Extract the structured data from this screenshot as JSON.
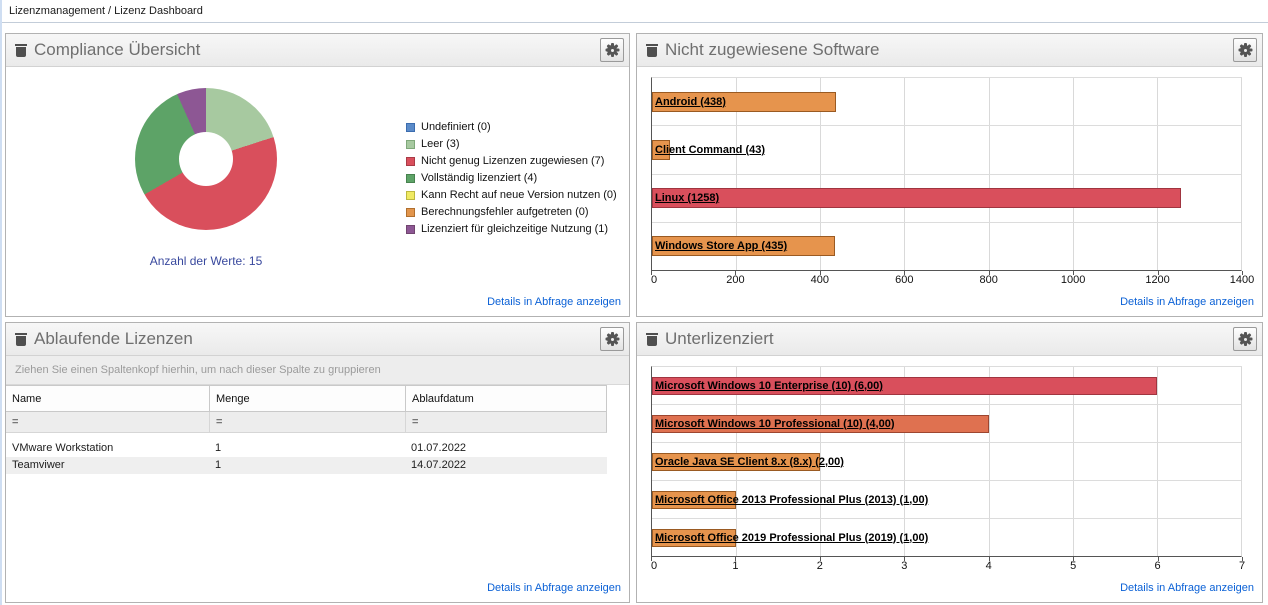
{
  "breadcrumb": {
    "text": "Lizenzmanagement / Lizenz Dashboard"
  },
  "colors": {
    "link": "#0b61d6",
    "caption_blue": "#39499e",
    "axis": "#555555",
    "gridline": "#d9d9d9",
    "accent_red": "#d94f5c",
    "accent_orange": "#e6944d"
  },
  "icons": {
    "panel_icon": "trash-icon",
    "settings_icon": "gear-icon"
  },
  "panels": [
    {
      "title": "Compliance Übersicht",
      "details_link": "Details in Abfrage anzeigen"
    },
    {
      "title": "Nicht zugewiesene Software",
      "details_link": "Details in Abfrage anzeigen"
    },
    {
      "title": "Ablaufende Lizenzen",
      "details_link": "Details in Abfrage anzeigen"
    },
    {
      "title": "Unterlizenziert",
      "details_link": "Details in Abfrage anzeigen"
    }
  ],
  "chart_data": [
    {
      "type": "pie",
      "title": "Compliance Übersicht",
      "labels": [
        "Undefiniert",
        "Leer",
        "Nicht genug Lizenzen zugewiesen",
        "Vollständig lizenziert",
        "Kann Recht auf neue Version nutzen",
        "Berechnungsfehler aufgetreten",
        "Lizenziert für gleichzeitige Nutzung"
      ],
      "values": [
        0,
        3,
        7,
        4,
        0,
        0,
        1
      ],
      "colors": [
        "#5b8bc9",
        "#a7c9a0",
        "#d94f5c",
        "#5da367",
        "#f0ea62",
        "#e2954c",
        "#8d5794"
      ],
      "border_colors": [
        "#3c6daf",
        "#7fa87a",
        "#a93b46",
        "#47824f",
        "#bdb83f",
        "#b06f2e",
        "#71456f"
      ],
      "total": 15,
      "caption": "Anzahl der Werte: 15",
      "hole_ratio": 0.38,
      "legend_position": "right"
    },
    {
      "type": "bar",
      "orientation": "horizontal",
      "title": "Nicht zugewiesene Software",
      "categories": [
        "Android (438)",
        "Client Command (43)",
        "Linux (1258)",
        "Windows Store App (435)"
      ],
      "values": [
        438,
        43,
        1258,
        435
      ],
      "colors": [
        "#e6944d",
        "#e6944d",
        "#d94f5c",
        "#e6944d"
      ],
      "border_colors": [
        "#9a5a22",
        "#9a5a22",
        "#a03540",
        "#9a5a22"
      ],
      "xlim": [
        0,
        1400
      ],
      "xticks": [
        0,
        200,
        400,
        600,
        800,
        1000,
        1200,
        1400
      ],
      "grid": true
    },
    {
      "type": "bar",
      "orientation": "horizontal",
      "title": "Unterlizenziert",
      "categories": [
        "Microsoft Windows 10 Enterprise (10) (6,00)",
        "Microsoft Windows 10 Professional (10) (4,00)",
        "Oracle Java SE Client 8.x (8.x) (2,00)",
        "Microsoft Office 2013 Professional Plus (2013) (1,00)",
        "Microsoft Office 2019 Professional Plus (2019) (1,00)"
      ],
      "values": [
        6,
        4,
        2,
        1,
        1
      ],
      "colors": [
        "#d94f5c",
        "#df7150",
        "#e6944d",
        "#e6944d",
        "#e6944d"
      ],
      "border_colors": [
        "#a03540",
        "#9d4630",
        "#9a5a22",
        "#9a5a22",
        "#9a5a22"
      ],
      "xlim": [
        0,
        7
      ],
      "xticks": [
        0,
        1,
        2,
        3,
        4,
        5,
        6,
        7
      ],
      "grid": true
    }
  ],
  "table": {
    "group_hint": "Ziehen Sie einen Spaltenkopf hierhin, um nach dieser Spalte zu gruppieren",
    "columns": [
      "Name",
      "Menge",
      "Ablaufdatum"
    ],
    "filter_operator": "=",
    "rows": [
      [
        "VMware Workstation",
        "1",
        "01.07.2022"
      ],
      [
        "Teamviwer",
        "1",
        "14.07.2022"
      ]
    ]
  }
}
